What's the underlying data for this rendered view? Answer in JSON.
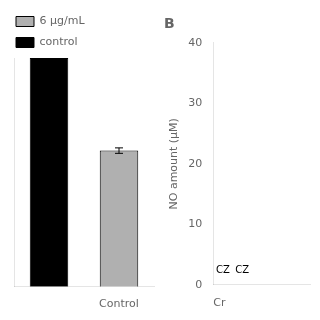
{
  "chart_data": [
    {
      "type": "bar",
      "categories": [
        null,
        "Control"
      ],
      "series": [
        {
          "name": "6 μg/mL",
          "color": "#b0b0b0",
          "values": [
            null,
            25
          ],
          "errors": [
            null,
            0.5
          ]
        },
        {
          "name": "control",
          "color": "#000000",
          "values": [
            42,
            null
          ]
        }
      ],
      "ylim": [
        0,
        42
      ],
      "tick_labels": "x",
      "grid": false,
      "legend": "upper left"
    },
    {
      "type": "scatter",
      "title": "B",
      "xlabel": "Cr",
      "ylabel": "NO amount (μM)",
      "xlim": [
        0,
        5
      ],
      "ylim": [
        0,
        40
      ],
      "yticks": [
        0,
        10,
        20,
        30,
        40
      ],
      "tick_labels": "y",
      "grid": false,
      "annotations": [
        {
          "text": "CZ",
          "x": 0.5,
          "y": 1.5
        },
        {
          "text": "CZ",
          "x": 1.5,
          "y": 1.5
        }
      ]
    }
  ]
}
